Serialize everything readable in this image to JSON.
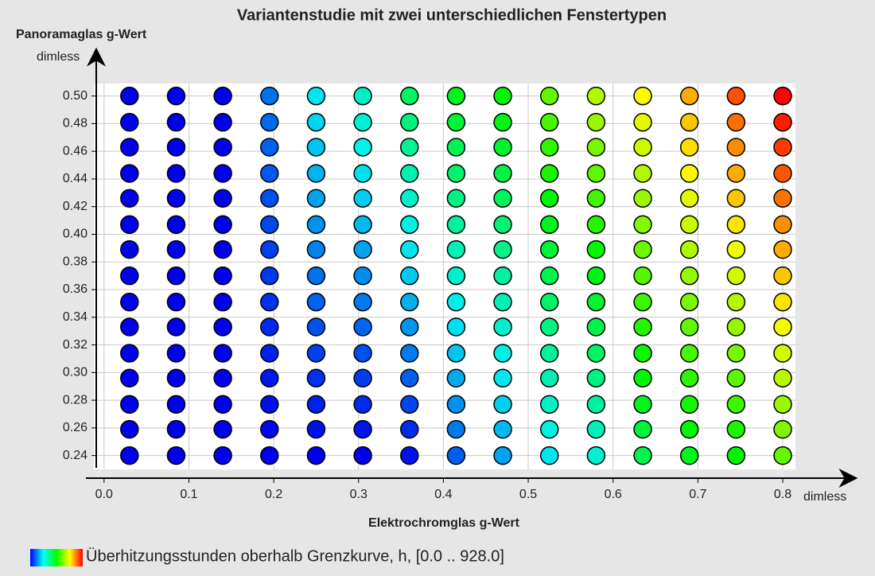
{
  "chart_data": {
    "type": "heatmap-scatter",
    "title": "Variantenstudie mit zwei unterschiedlichen Fenstertypen",
    "x_label": "Elektrochromglas g-Wert",
    "x_unit": "dimless",
    "y_label": "Panoramaglas g-Wert",
    "y_unit": "dimless",
    "colorbar_label": "Überhitzungsstunden oberhalb Grenzkurve, h, [0.0 .. 928.0]",
    "zlim": [
      0,
      928
    ],
    "x": [
      0.03,
      0.085,
      0.14,
      0.195,
      0.25,
      0.305,
      0.36,
      0.415,
      0.47,
      0.525,
      0.58,
      0.635,
      0.69,
      0.745,
      0.8
    ],
    "y": [
      0.24,
      0.259,
      0.277,
      0.296,
      0.314,
      0.333,
      0.351,
      0.37,
      0.389,
      0.407,
      0.426,
      0.444,
      0.463,
      0.481,
      0.5
    ],
    "z": [
      [
        0,
        0,
        0,
        0,
        0,
        0,
        19,
        93,
        158,
        223,
        260,
        390,
        436,
        464,
        557
      ],
      [
        0,
        0,
        0,
        8,
        16,
        20,
        44,
        118,
        180,
        247,
        287,
        412,
        460,
        492,
        584
      ],
      [
        0,
        0,
        0,
        16,
        32,
        40,
        69,
        142,
        202,
        271,
        313,
        434,
        484,
        520,
        610
      ],
      [
        0,
        0,
        0,
        24,
        48,
        60,
        94,
        167,
        224,
        295,
        340,
        456,
        508,
        548,
        637
      ],
      [
        0,
        0,
        0,
        32,
        64,
        79,
        120,
        191,
        245,
        318,
        366,
        477,
        531,
        575,
        663
      ],
      [
        0,
        0,
        0,
        40,
        80,
        99,
        145,
        216,
        267,
        342,
        393,
        499,
        555,
        603,
        690
      ],
      [
        0,
        0,
        0,
        48,
        96,
        119,
        170,
        240,
        289,
        366,
        419,
        521,
        579,
        631,
        716
      ],
      [
        0,
        0,
        0,
        56,
        112,
        139,
        195,
        265,
        311,
        390,
        446,
        543,
        603,
        659,
        743
      ],
      [
        0,
        0,
        0,
        63,
        127,
        159,
        220,
        289,
        333,
        414,
        472,
        565,
        627,
        687,
        769
      ],
      [
        0,
        0,
        0,
        71,
        143,
        179,
        245,
        314,
        355,
        438,
        499,
        587,
        651,
        715,
        796
      ],
      [
        0,
        0,
        0,
        79,
        159,
        199,
        270,
        338,
        377,
        462,
        525,
        609,
        675,
        743,
        822
      ],
      [
        0,
        0,
        0,
        87,
        175,
        218,
        296,
        363,
        399,
        486,
        552,
        630,
        698,
        770,
        849
      ],
      [
        0,
        0,
        0,
        95,
        191,
        238,
        321,
        387,
        421,
        509,
        578,
        652,
        722,
        798,
        875
      ],
      [
        0,
        0,
        0,
        103,
        207,
        258,
        346,
        412,
        442,
        533,
        605,
        674,
        746,
        826,
        902
      ],
      [
        0,
        0,
        0,
        111,
        223,
        278,
        371,
        436,
        464,
        557,
        631,
        696,
        770,
        854,
        928
      ]
    ],
    "xlim": [
      -0.012,
      0.815
    ],
    "ylim": [
      0.23,
      0.509
    ],
    "xticks": [
      {
        "value": 0,
        "label": "0.0"
      },
      0.1,
      0.2,
      0.3,
      0.4,
      0.5,
      0.6,
      0.7,
      0.8
    ],
    "yticks": [
      0.24,
      0.26,
      0.28,
      {
        "value": 0.3,
        "label": "0.30"
      },
      0.32,
      0.34,
      0.36,
      0.38,
      {
        "value": 0.4,
        "label": "0.40"
      },
      0.42,
      0.44,
      0.46,
      0.48,
      {
        "value": 0.5,
        "label": "0.50"
      }
    ],
    "grid": true
  }
}
